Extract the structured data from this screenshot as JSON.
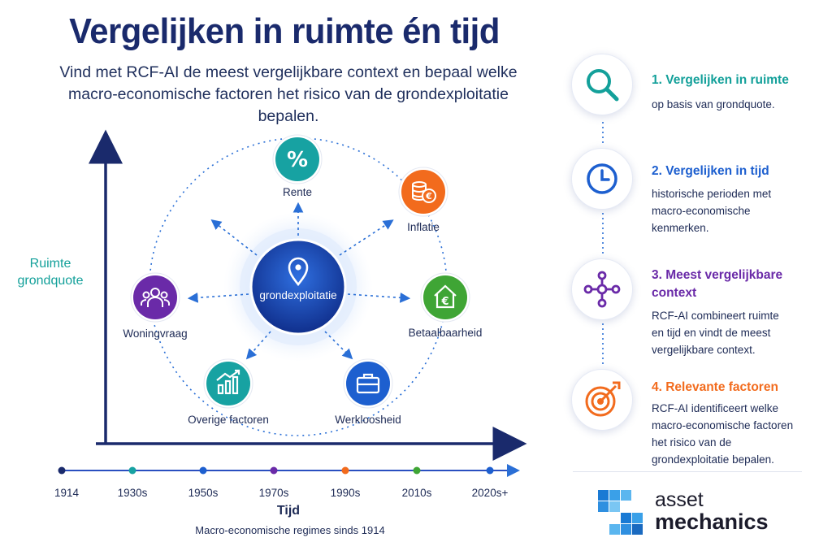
{
  "header": {
    "title": "Vergelijken in ruimte én tijd",
    "subtitle": "Vind met RCF-AI de meest vergelijkbare context en bepaal welke macro-economische factoren het risico van de grondexploitatie bepalen."
  },
  "diagram": {
    "hub": {
      "label": "grondexploitatie",
      "icon": "map-pin-icon"
    },
    "nodes": [
      {
        "label": "Rente",
        "icon": "percent-icon",
        "color": "#17a2a2"
      },
      {
        "label": "Inflatie",
        "icon": "coins-euro-icon",
        "color": "#f26b1d"
      },
      {
        "label": "Betaalbaarheid",
        "icon": "house-euro-icon",
        "color": "#3fa535"
      },
      {
        "label": "Werkloosheid",
        "icon": "briefcase-icon",
        "color": "#1d5fcf"
      },
      {
        "label": "Overige factoren",
        "icon": "chart-up-icon",
        "color": "#17a2a2"
      },
      {
        "label": "Woningvraag",
        "icon": "people-icon",
        "color": "#6a2aa8"
      }
    ],
    "y_axis_label": "Ruimte\ngrondquote",
    "x_axis": {
      "label": "Tijd",
      "sublabel": "Macro-economische regimes sinds 1914",
      "ticks": [
        {
          "label": "1914",
          "color": "#1a2a6c"
        },
        {
          "label": "1930s",
          "color": "#17a2a2"
        },
        {
          "label": "1950s",
          "color": "#1d5fcf"
        },
        {
          "label": "1970s",
          "color": "#6a2aa8"
        },
        {
          "label": "1990s",
          "color": "#f26b1d"
        },
        {
          "label": "2010s",
          "color": "#3fa535"
        },
        {
          "label": "2020s+",
          "color": "#1d5fcf"
        }
      ]
    }
  },
  "steps": [
    {
      "title": "1. Vergelijken in ruimte",
      "description": "op basis van grondquote.",
      "icon": "search-icon",
      "color": "#13a09a"
    },
    {
      "title": "2. Vergelijken in tijd",
      "description": "historische perioden met\nmacro-economische\nkenmerken.",
      "icon": "clock-icon",
      "color": "#1d5fcf"
    },
    {
      "title": "3. Meest vergelijkbare\ncontext",
      "description": "RCF-AI combineert ruimte\nen tijd en vindt de meest\nvergelijkbare context.",
      "icon": "network-icon",
      "color": "#6a2aa8"
    },
    {
      "title": "4. Relevante factoren",
      "description": "RCF-AI identificeert welke\nmacro-economische factoren\nhet risico van de\ngrondexploitatie bepalen.",
      "icon": "target-icon",
      "color": "#f26b1d"
    }
  ],
  "logo": {
    "line1": "asset",
    "line2": "mechanics"
  }
}
